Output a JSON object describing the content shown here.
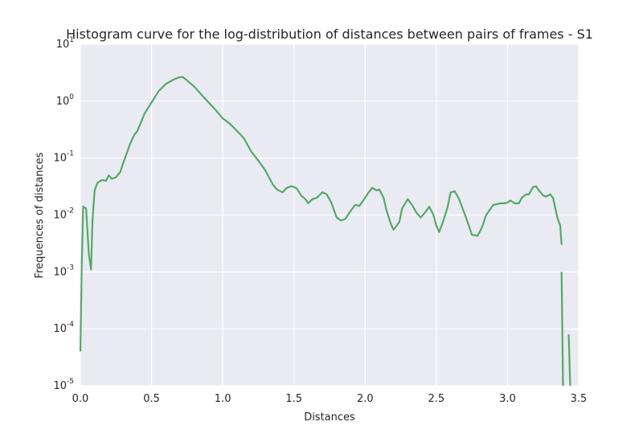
{
  "chart_data": {
    "type": "line",
    "title": "Histogram curve for the log-distribution of distances between pairs of frames - S1",
    "xlabel": "Distances",
    "ylabel": "Frequences of distances",
    "xlim": [
      0.0,
      3.5
    ],
    "ylim": [
      1e-05,
      10
    ],
    "yscale": "log",
    "grid": true,
    "x_ticks": [
      {
        "value": 0.0,
        "label": "0.0"
      },
      {
        "value": 0.5,
        "label": "0.5"
      },
      {
        "value": 1.0,
        "label": "1.0"
      },
      {
        "value": 1.5,
        "label": "1.5"
      },
      {
        "value": 2.0,
        "label": "2.0"
      },
      {
        "value": 2.5,
        "label": "2.5"
      },
      {
        "value": 3.0,
        "label": "3.0"
      },
      {
        "value": 3.5,
        "label": "3.5"
      }
    ],
    "y_ticks": [
      {
        "value": 1e-05,
        "base": "10",
        "exp": "-5"
      },
      {
        "value": 0.0001,
        "base": "10",
        "exp": "-4"
      },
      {
        "value": 0.001,
        "base": "10",
        "exp": "-3"
      },
      {
        "value": 0.01,
        "base": "10",
        "exp": "-2"
      },
      {
        "value": 0.1,
        "base": "10",
        "exp": "-1"
      },
      {
        "value": 1,
        "base": "10",
        "exp": "0"
      },
      {
        "value": 10,
        "base": "10",
        "exp": "1"
      }
    ],
    "colors": {
      "line": "#55a868",
      "plot_bg": "#eaeaf2",
      "grid": "#ffffff"
    },
    "series": [
      {
        "x": [
          0.0,
          0.01,
          0.02,
          0.04,
          0.06,
          0.075,
          0.085,
          0.1,
          0.12,
          0.15,
          0.18,
          0.2,
          0.22,
          0.25,
          0.28,
          0.3,
          0.35,
          0.38,
          0.4,
          0.43,
          0.45,
          0.5,
          0.55,
          0.6,
          0.65,
          0.69,
          0.72,
          0.75,
          0.8,
          0.85,
          0.9,
          0.95,
          1.0,
          1.05,
          1.1,
          1.15,
          1.2,
          1.25,
          1.3,
          1.35,
          1.38,
          1.42,
          1.45,
          1.48,
          1.5,
          1.52,
          1.55,
          1.58,
          1.6,
          1.63,
          1.66,
          1.7,
          1.73,
          1.76,
          1.8,
          1.83,
          1.86,
          1.9,
          1.93,
          1.96,
          1.98,
          2.0,
          2.02,
          2.05,
          2.08,
          2.1,
          2.13,
          2.15,
          2.18,
          2.2,
          2.24,
          2.26,
          2.3,
          2.33,
          2.36,
          2.39,
          2.42,
          2.45,
          2.48,
          2.5,
          2.52,
          2.55,
          2.58,
          2.6,
          2.63,
          2.66,
          2.69,
          2.72,
          2.75,
          2.79,
          2.82,
          2.85,
          2.9,
          2.95,
          2.98,
          3.0,
          3.02,
          3.05,
          3.08,
          3.1,
          3.13,
          3.15,
          3.18,
          3.2,
          3.22,
          3.25,
          3.27,
          3.3,
          3.32,
          3.35,
          3.37,
          3.38
        ],
        "y": [
          4e-05,
          0.0015,
          0.014,
          0.013,
          0.002,
          0.0011,
          0.008,
          0.027,
          0.037,
          0.041,
          0.04,
          0.05,
          0.043,
          0.046,
          0.057,
          0.08,
          0.18,
          0.26,
          0.3,
          0.45,
          0.6,
          0.95,
          1.5,
          2.0,
          2.35,
          2.6,
          2.65,
          2.3,
          1.8,
          1.3,
          0.95,
          0.7,
          0.5,
          0.4,
          0.3,
          0.22,
          0.13,
          0.09,
          0.06,
          0.035,
          0.028,
          0.025,
          0.03,
          0.032,
          0.031,
          0.029,
          0.022,
          0.019,
          0.016,
          0.019,
          0.02,
          0.025,
          0.023,
          0.017,
          0.009,
          0.008,
          0.0085,
          0.012,
          0.015,
          0.0145,
          0.017,
          0.02,
          0.024,
          0.03,
          0.027,
          0.028,
          0.02,
          0.012,
          0.007,
          0.0055,
          0.0075,
          0.013,
          0.019,
          0.015,
          0.011,
          0.009,
          0.011,
          0.014,
          0.01,
          0.0065,
          0.005,
          0.008,
          0.014,
          0.025,
          0.026,
          0.019,
          0.012,
          0.0075,
          0.0045,
          0.0043,
          0.006,
          0.01,
          0.015,
          0.016,
          0.016,
          0.0165,
          0.018,
          0.016,
          0.016,
          0.02,
          0.023,
          0.023,
          0.031,
          0.032,
          0.027,
          0.022,
          0.021,
          0.023,
          0.02,
          0.009,
          0.0065,
          0.003
        ]
      },
      {
        "x": [
          3.38,
          3.39
        ],
        "y": [
          0.001,
          1e-05
        ]
      },
      {
        "x": [
          3.43,
          3.44
        ],
        "y": [
          8e-05,
          1e-05
        ]
      }
    ]
  }
}
